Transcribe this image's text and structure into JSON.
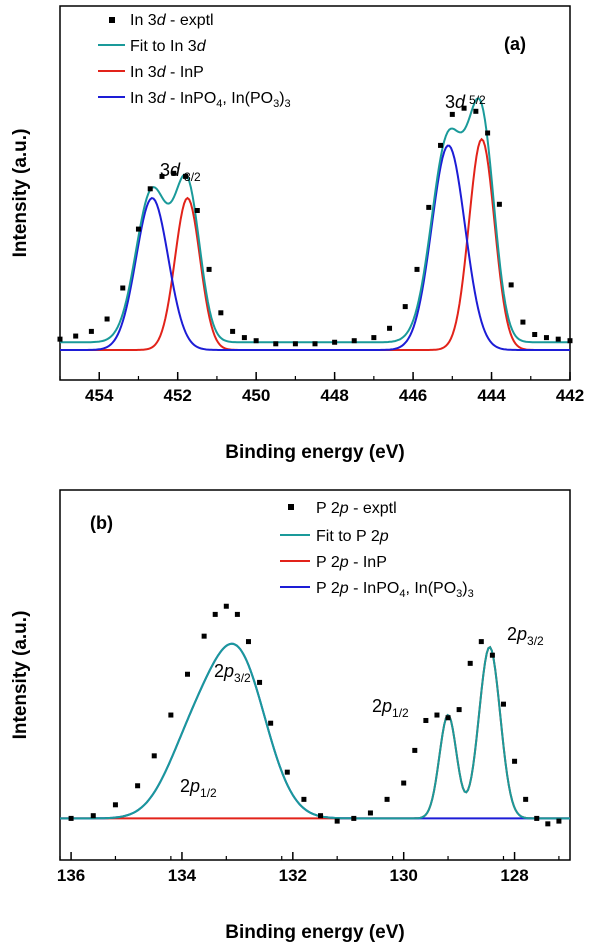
{
  "chart_data": [
    {
      "type": "line",
      "panel_label": "(a)",
      "xlabel": "Binding energy (eV)",
      "ylabel": "Intensity (a.u.)",
      "xlim": [
        455,
        442
      ],
      "x_reversed": true,
      "ylim": [
        0,
        1
      ],
      "x_ticks": [
        "454",
        "452",
        "450",
        "448",
        "446",
        "444",
        "442"
      ],
      "x_tick_values": [
        454,
        452,
        450,
        448,
        446,
        444,
        442
      ],
      "legend_placement": "top-left",
      "series": [
        {
          "name": "In 3d - exptl",
          "kind": "points",
          "color": "#000000",
          "x": [
            455.0,
            454.6,
            454.2,
            453.8,
            453.4,
            453.0,
            452.7,
            452.4,
            452.1,
            451.8,
            451.5,
            451.2,
            450.9,
            450.6,
            450.3,
            450.0,
            449.5,
            449.0,
            448.5,
            448.0,
            447.5,
            447.0,
            446.6,
            446.2,
            445.9,
            445.6,
            445.3,
            445.0,
            444.7,
            444.4,
            444.1,
            443.8,
            443.5,
            443.2,
            442.9,
            442.6,
            442.3,
            442.0
          ],
          "y": [
            0.035,
            0.045,
            0.06,
            0.1,
            0.2,
            0.39,
            0.52,
            0.56,
            0.57,
            0.56,
            0.45,
            0.26,
            0.12,
            0.06,
            0.04,
            0.03,
            0.02,
            0.02,
            0.02,
            0.025,
            0.03,
            0.04,
            0.07,
            0.14,
            0.26,
            0.46,
            0.66,
            0.76,
            0.78,
            0.77,
            0.7,
            0.47,
            0.21,
            0.09,
            0.05,
            0.04,
            0.035,
            0.03
          ]
        },
        {
          "name": "Fit to In 3d",
          "kind": "fit",
          "color": "#1a9a9a",
          "peaks": [
            {
              "c": 452.65,
              "a": 0.49,
              "w": 0.58
            },
            {
              "c": 451.75,
              "a": 0.49,
              "w": 0.45
            },
            {
              "c": 445.1,
              "a": 0.66,
              "w": 0.6
            },
            {
              "c": 444.25,
              "a": 0.68,
              "w": 0.46
            }
          ],
          "baseline": 0.025
        },
        {
          "name": "In 3d - InP",
          "kind": "fit",
          "color": "#e2231a",
          "peaks": [
            {
              "c": 451.75,
              "a": 0.49,
              "w": 0.45
            },
            {
              "c": 444.25,
              "a": 0.68,
              "w": 0.46
            }
          ],
          "baseline": 0.0
        },
        {
          "name": "In 3d - InPO4, In(PO3)3",
          "kind": "fit",
          "color": "#1d1dd6",
          "peaks": [
            {
              "c": 452.65,
              "a": 0.49,
              "w": 0.58
            },
            {
              "c": 445.1,
              "a": 0.66,
              "w": 0.6
            }
          ],
          "baseline": 0.0
        }
      ],
      "legend": [
        "In 3d - exptl",
        "Fit to In 3d",
        "In 3d - InP",
        "In 3d - InPO4, In(PO3)3"
      ],
      "annotations": [
        {
          "text": "3d",
          "sub": "3/2",
          "x": 452.0,
          "y": 0.66
        },
        {
          "text": "3d",
          "sub": "5/2",
          "x": 444.6,
          "y": 0.9
        }
      ]
    },
    {
      "type": "line",
      "panel_label": "(b)",
      "xlabel": "Binding energy (eV)",
      "ylabel": "Intensity (a.u.)",
      "xlim": [
        136.2,
        127.0
      ],
      "x_reversed": true,
      "ylim": [
        0,
        1
      ],
      "x_ticks": [
        "136",
        "134",
        "132",
        "130",
        "128"
      ],
      "x_tick_values": [
        136,
        134,
        132,
        130,
        128
      ],
      "legend_placement": "top-right",
      "series": [
        {
          "name": "P 2p - exptl",
          "kind": "points",
          "color": "#000000",
          "x": [
            136.0,
            135.6,
            135.2,
            134.8,
            134.5,
            134.2,
            133.9,
            133.6,
            133.4,
            133.2,
            133.0,
            132.8,
            132.6,
            132.4,
            132.1,
            131.8,
            131.5,
            131.2,
            130.9,
            130.6,
            130.3,
            130.0,
            129.8,
            129.6,
            129.4,
            129.2,
            129.0,
            128.8,
            128.6,
            128.4,
            128.2,
            128.0,
            127.8,
            127.6,
            127.4,
            127.2
          ],
          "y": [
            0.05,
            0.06,
            0.1,
            0.17,
            0.28,
            0.43,
            0.58,
            0.72,
            0.8,
            0.83,
            0.8,
            0.7,
            0.55,
            0.4,
            0.22,
            0.12,
            0.06,
            0.04,
            0.05,
            0.07,
            0.12,
            0.18,
            0.3,
            0.41,
            0.43,
            0.42,
            0.45,
            0.62,
            0.7,
            0.65,
            0.47,
            0.26,
            0.12,
            0.05,
            0.03,
            0.04
          ]
        },
        {
          "name": "Fit to P 2p",
          "kind": "fit",
          "color": "#1a9a9a",
          "peaks": [
            {
              "c": 133.85,
              "a": 0.24,
              "w": 0.65
            },
            {
              "c": 133.0,
              "a": 0.59,
              "w": 0.72
            },
            {
              "c": 129.2,
              "a": 0.38,
              "w": 0.22
            },
            {
              "c": 128.45,
              "a": 0.63,
              "w": 0.27
            }
          ],
          "baseline": 0.05
        },
        {
          "name": "P 2p - InP",
          "kind": "fit",
          "color": "#e2231a",
          "peaks": [
            {
              "c": 129.2,
              "a": 0.38,
              "w": 0.22
            },
            {
              "c": 128.45,
              "a": 0.63,
              "w": 0.27
            }
          ],
          "baseline": 0.05
        },
        {
          "name": "P 2p - InPO4, In(PO3)3",
          "kind": "fit",
          "color": "#1d1dd6",
          "peaks": [
            {
              "c": 133.85,
              "a": 0.24,
              "w": 0.65
            },
            {
              "c": 133.0,
              "a": 0.59,
              "w": 0.72
            }
          ],
          "baseline": 0.05
        }
      ],
      "legend": [
        "P 2p - exptl",
        "Fit to P 2p",
        "P 2p - InP",
        "P 2p - InPO4, In(PO3)3"
      ],
      "annotations": [
        {
          "text": "2p",
          "sub": "3/2",
          "x": 132.8,
          "y": 0.56
        },
        {
          "text": "2p",
          "sub": "1/2",
          "x": 133.4,
          "y": 0.2
        },
        {
          "text": "2p",
          "sub": "1/2",
          "x": 129.7,
          "y": 0.46
        },
        {
          "text": "2p",
          "sub": "3/2",
          "x": 127.8,
          "y": 0.66
        }
      ]
    }
  ]
}
